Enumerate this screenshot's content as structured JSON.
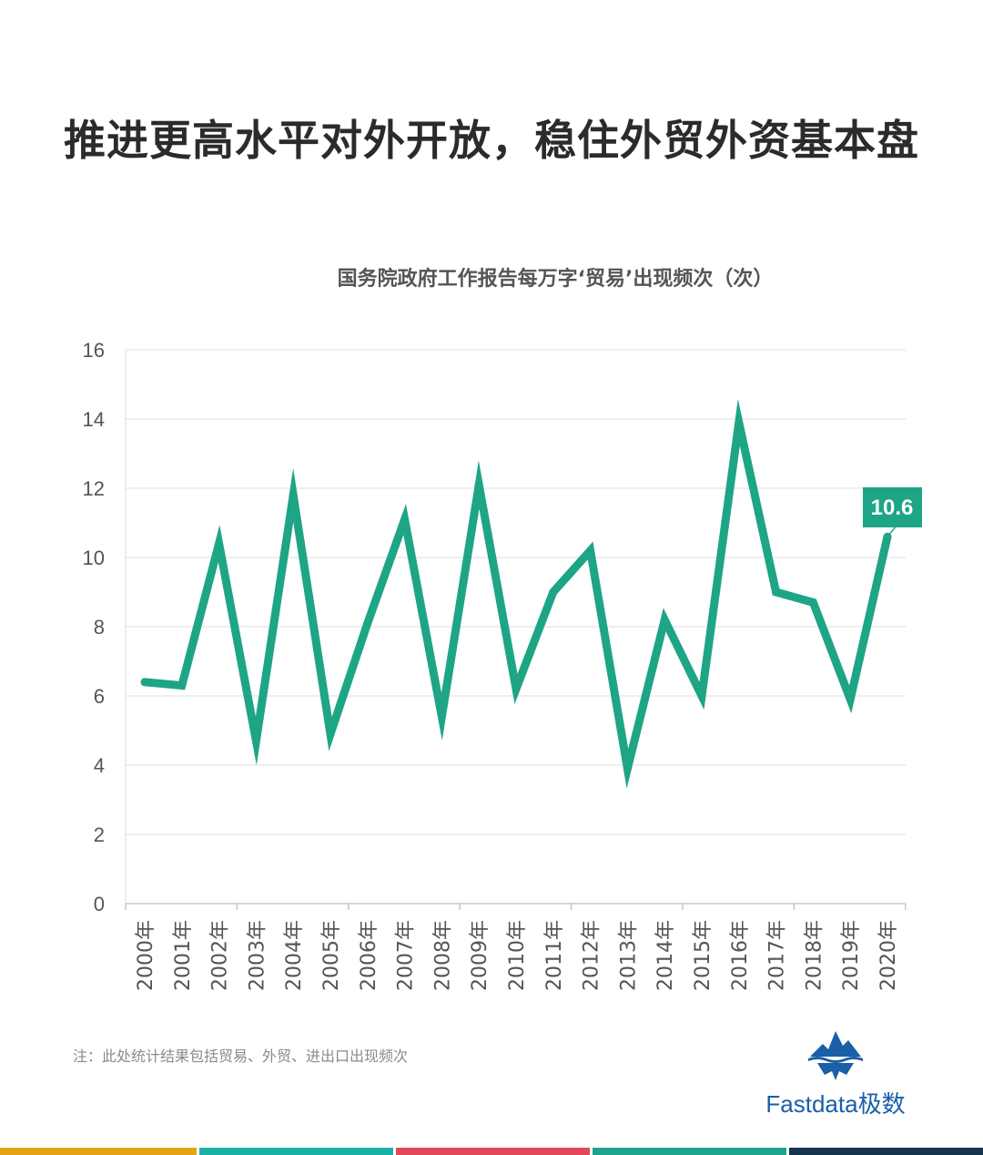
{
  "headline": "推进更高水平对外开放，稳住外贸外资基本盘",
  "note": "注：此处统计结果包括贸易、外贸、进出口出现频次",
  "brand": {
    "name": "Fastdata极数",
    "icon": "iceberg-icon"
  },
  "colors": {
    "line": "#1ea585",
    "grid": "#dcdcdc",
    "axis_text": "#555555",
    "stripes": [
      "#e5a417",
      "#1bb1a7",
      "#e1485a",
      "#1fa38c",
      "#16334f"
    ]
  },
  "chart_data": {
    "type": "line",
    "title": "国务院政府工作报告每万字‘贸易’出现频次（次）",
    "xlabel": "",
    "ylabel": "",
    "categories": [
      "2000年",
      "2001年",
      "2002年",
      "2003年",
      "2004年",
      "2005年",
      "2006年",
      "2007年",
      "2008年",
      "2009年",
      "2010年",
      "2011年",
      "2012年",
      "2013年",
      "2014年",
      "2015年",
      "2016年",
      "2017年",
      "2018年",
      "2019年",
      "2020年"
    ],
    "series": [
      {
        "values": [
          6.4,
          6.3,
          10.4,
          4.7,
          11.8,
          4.9,
          8.1,
          11.1,
          5.4,
          12.1,
          6.2,
          9.0,
          10.2,
          3.9,
          8.2,
          6.0,
          13.9,
          9.0,
          8.7,
          5.9,
          10.6
        ]
      }
    ],
    "ylim": [
      0,
      16
    ],
    "yticks": [
      0,
      2,
      4,
      6,
      8,
      10,
      12,
      14,
      16
    ],
    "grid": true,
    "legend": "none",
    "annotation": {
      "label": "10.6",
      "category": "2020年"
    }
  }
}
